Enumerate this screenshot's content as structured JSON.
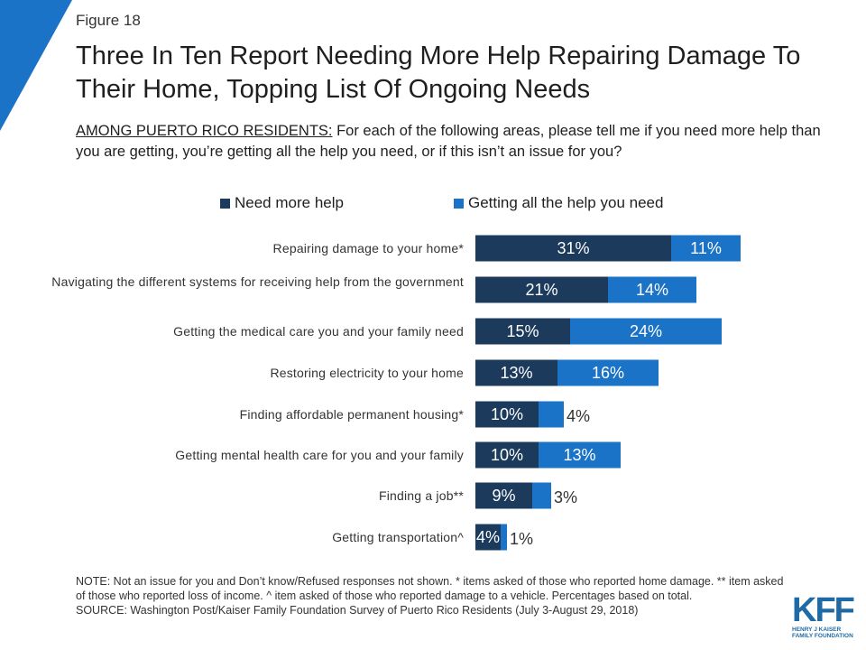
{
  "figure_label": "Figure 18",
  "title": "Three In Ten Report Needing More Help Repairing Damage To Their Home, Topping List Of Ongoing Needs",
  "subtitle_lead": "AMONG PUERTO RICO RESIDENTS:",
  "subtitle_rest": " For each of the following areas, please tell me if you need more help than you are getting, you’re getting all the help you need, or if this isn’t an issue for you?",
  "colors": {
    "need_more": "#1b3a5c",
    "getting_all": "#1a73c6",
    "corner": "#1a73c6"
  },
  "chart_data": {
    "type": "bar",
    "orientation": "horizontal",
    "stacked": true,
    "categories": [
      "Repairing damage to your home*",
      "Navigating the different systems for receiving help from the government",
      "Getting the medical care you and your family need",
      "Restoring electricity to your home",
      "Finding affordable permanent housing*",
      "Getting mental health care for you and your family",
      "Finding a job**",
      "Getting transportation^"
    ],
    "series": [
      {
        "name": "Need more help",
        "values": [
          31,
          21,
          15,
          13,
          10,
          10,
          9,
          4
        ],
        "labels": [
          "31%",
          "21%",
          "15%",
          "13%",
          "10%",
          "10%",
          "9%",
          "4%"
        ]
      },
      {
        "name": "Getting all the help you need",
        "values": [
          11,
          14,
          24,
          16,
          4,
          13,
          3,
          1
        ],
        "labels": [
          "11%",
          "14%",
          "24%",
          "16%",
          "4%",
          "13%",
          "3%",
          "1%"
        ]
      }
    ],
    "legend_position": "top"
  },
  "notes": {
    "note": "NOTE: Not an issue for you and Don’t know/Refused responses not shown. * items asked of those who reported home damage. ** item asked of those who reported loss of income. ^ item asked of those who reported damage to a vehicle. Percentages based on total.",
    "source": "SOURCE: Washington Post/Kaiser Family Foundation Survey of Puerto Rico Residents (July 3-August 29, 2018)"
  },
  "logo": {
    "mark": "KFF",
    "line1": "HENRY J KAISER",
    "line2": "FAMILY FOUNDATION"
  }
}
